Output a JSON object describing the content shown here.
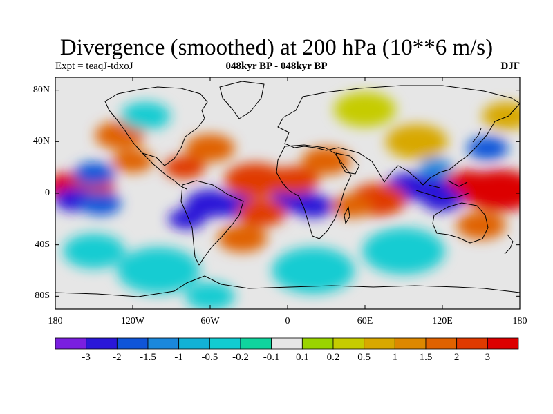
{
  "title": "Divergence (smoothed) at 200 hPa (10**6 m/s)",
  "subtitle_left": "Expt = teaqJ-tdxoJ",
  "subtitle_center": "048kyr BP - 048kyr BP",
  "subtitle_right": "DJF",
  "map": {
    "projection": "cylindrical equidistant",
    "lon_range": [
      -180,
      180
    ],
    "lat_range": [
      -90,
      90
    ],
    "lat_ticks": [
      "80N",
      "40N",
      "0",
      "40S",
      "80S"
    ],
    "lat_values": [
      80,
      40,
      0,
      -40,
      -80
    ],
    "lon_ticks": [
      "180",
      "120W",
      "60W",
      "0",
      "60E",
      "120E",
      "180"
    ],
    "lon_values": [
      -180,
      -120,
      -60,
      0,
      60,
      120,
      180
    ],
    "background_color": "#e6e6e6"
  },
  "colorbar": {
    "labels": [
      "-3",
      "-2",
      "-1.5",
      "-1",
      "-0.5",
      "-0.2",
      "-0.1",
      "0.1",
      "0.2",
      "0.5",
      "1",
      "1.5",
      "2",
      "3"
    ],
    "colors": [
      "#7a1fe0",
      "#2a17d8",
      "#0f55d9",
      "#1a88dc",
      "#12b2d6",
      "#12ccd2",
      "#10d49e",
      "#e6e6e6",
      "#9ad400",
      "#c6cc00",
      "#d8a800",
      "#dd8800",
      "#e06200",
      "#e03a00",
      "#dc0000"
    ]
  },
  "chart_data": {
    "type": "heatmap",
    "title": "Divergence (smoothed) at 200 hPa (10**6 m/s)",
    "variable": "Divergence (smoothed) at 200 hPa",
    "units": "10**6 m/s",
    "season": "DJF",
    "contour_levels": [
      -3,
      -2,
      -1.5,
      -1,
      -0.5,
      -0.2,
      -0.1,
      0.1,
      0.2,
      0.5,
      1,
      1.5,
      2,
      3
    ],
    "features": [
      {
        "lon": 165,
        "lat": 2,
        "value": 3.2,
        "r": 18
      },
      {
        "lon": 140,
        "lat": 5,
        "value": 3.0,
        "r": 14
      },
      {
        "lon": -168,
        "lat": 5,
        "value": 3.0,
        "r": 12
      },
      {
        "lon": -150,
        "lat": 5,
        "value": 2.6,
        "r": 10
      },
      {
        "lon": -165,
        "lat": -5,
        "value": -2.6,
        "r": 10
      },
      {
        "lon": -145,
        "lat": -8,
        "value": -2.0,
        "r": 10
      },
      {
        "lon": -150,
        "lat": 15,
        "value": -1.8,
        "r": 10
      },
      {
        "lon": -60,
        "lat": -8,
        "value": -3.0,
        "r": 12
      },
      {
        "lon": -40,
        "lat": -10,
        "value": -2.2,
        "r": 10
      },
      {
        "lon": -78,
        "lat": -20,
        "value": -2.2,
        "r": 9
      },
      {
        "lon": 5,
        "lat": -5,
        "value": -2.6,
        "r": 11
      },
      {
        "lon": 20,
        "lat": -10,
        "value": -2.4,
        "r": 10
      },
      {
        "lon": 95,
        "lat": 5,
        "value": -2.8,
        "r": 12
      },
      {
        "lon": 110,
        "lat": 5,
        "value": -3.0,
        "r": 10
      },
      {
        "lon": 120,
        "lat": -5,
        "value": -2.2,
        "r": 10
      },
      {
        "lon": -25,
        "lat": 10,
        "value": 2.8,
        "r": 15
      },
      {
        "lon": 5,
        "lat": 10,
        "value": 2.0,
        "r": 12
      },
      {
        "lon": 30,
        "lat": 25,
        "value": 1.6,
        "r": 12
      },
      {
        "lon": 70,
        "lat": -5,
        "value": 2.6,
        "r": 14
      },
      {
        "lon": 50,
        "lat": -10,
        "value": 1.8,
        "r": 10
      },
      {
        "lon": -20,
        "lat": -15,
        "value": 2.0,
        "r": 12
      },
      {
        "lon": -35,
        "lat": -35,
        "value": 1.5,
        "r": 12
      },
      {
        "lon": -80,
        "lat": 20,
        "value": 2.0,
        "r": 10
      },
      {
        "lon": -60,
        "lat": 35,
        "value": 1.6,
        "r": 12
      },
      {
        "lon": -120,
        "lat": 25,
        "value": 1.6,
        "r": 10
      },
      {
        "lon": -130,
        "lat": 45,
        "value": 1.5,
        "r": 12
      },
      {
        "lon": 155,
        "lat": 35,
        "value": -2.0,
        "r": 10
      },
      {
        "lon": 100,
        "lat": 40,
        "value": 0.9,
        "r": 15
      },
      {
        "lon": -110,
        "lat": 60,
        "value": -0.5,
        "r": 12
      },
      {
        "lon": 170,
        "lat": 60,
        "value": 0.9,
        "r": 12
      },
      {
        "lon": 60,
        "lat": 65,
        "value": 0.4,
        "r": 15
      },
      {
        "lon": 90,
        "lat": -45,
        "value": -0.5,
        "r": 20
      },
      {
        "lon": -150,
        "lat": -45,
        "value": -0.5,
        "r": 15
      },
      {
        "lon": -100,
        "lat": -60,
        "value": -0.4,
        "r": 20
      },
      {
        "lon": 20,
        "lat": -60,
        "value": -0.3,
        "r": 20
      },
      {
        "lon": -60,
        "lat": -80,
        "value": -0.3,
        "r": 12
      },
      {
        "lon": 150,
        "lat": -25,
        "value": 1.5,
        "r": 12
      },
      {
        "lon": 115,
        "lat": 20,
        "value": -1.5,
        "r": 8
      }
    ]
  }
}
